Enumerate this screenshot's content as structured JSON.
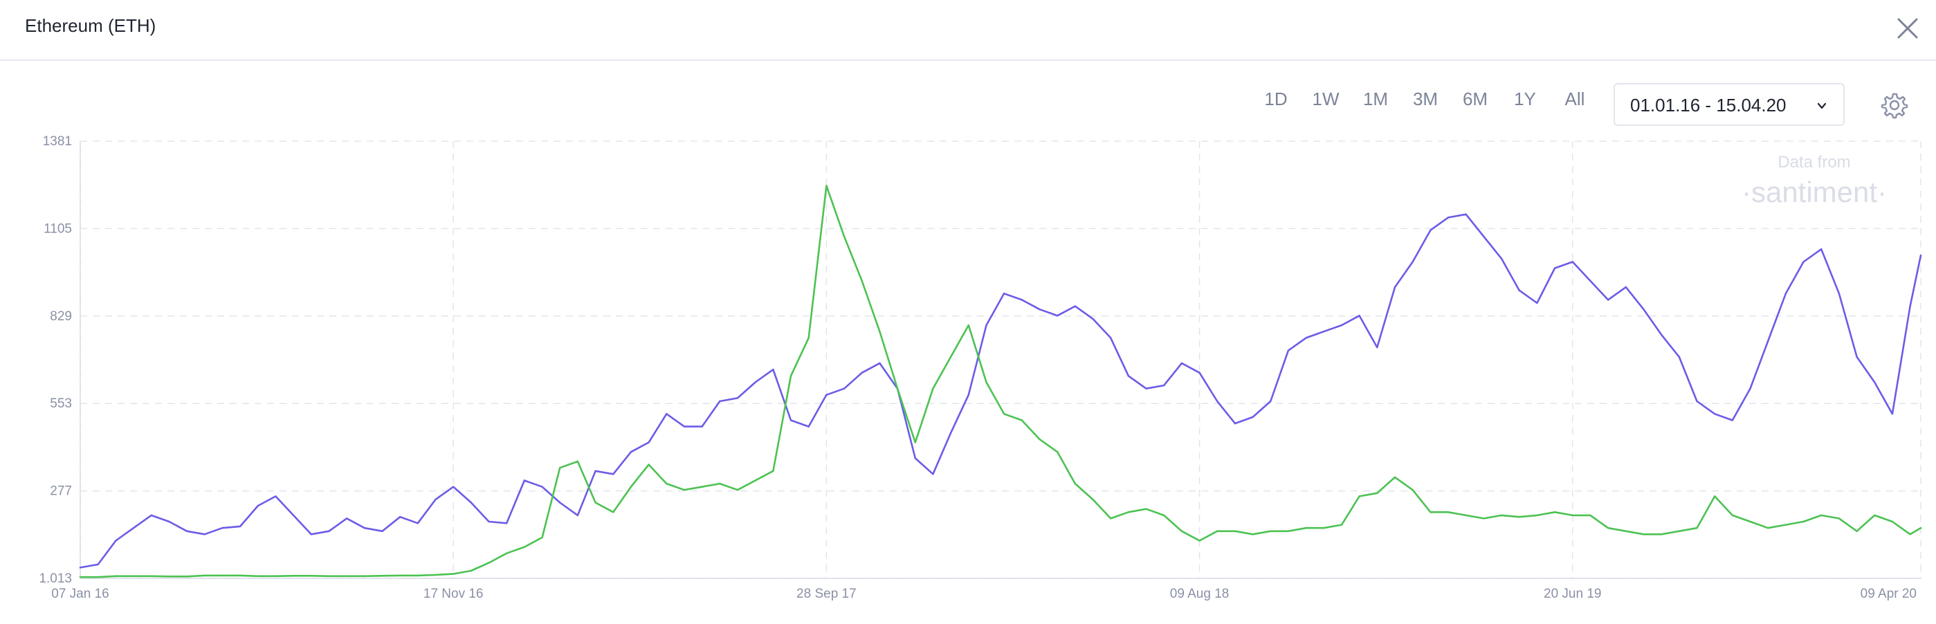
{
  "header": {
    "title": "Ethereum (ETH)",
    "close_icon": "close-icon"
  },
  "toolbar": {
    "ranges": [
      "1D",
      "1W",
      "1M",
      "3M",
      "6M",
      "1Y",
      "All"
    ],
    "date_range": "01.01.16 - 15.04.20",
    "chevron_icon": "chevron-down-icon",
    "settings_icon": "gear-icon"
  },
  "watermark": {
    "line1": "Data from",
    "line2": "·santiment·"
  },
  "chart_data": {
    "type": "line",
    "x_axis": {
      "type": "date",
      "ticks": [
        "07 Jan 16",
        "17 Nov 16",
        "28 Sep 17",
        "09 Aug 18",
        "20 Jun 19",
        "09 Apr 20"
      ]
    },
    "y_axis": {
      "ticks": [
        "1.013",
        "277",
        "553",
        "829",
        "1105",
        "1381"
      ],
      "ylim": [
        1.013,
        1381
      ]
    },
    "grid": true,
    "x": [
      "2016-01-07",
      "2016-01-22",
      "2016-02-06",
      "2016-02-21",
      "2016-03-07",
      "2016-03-22",
      "2016-04-06",
      "2016-04-21",
      "2016-05-06",
      "2016-05-21",
      "2016-06-05",
      "2016-06-20",
      "2016-07-05",
      "2016-07-20",
      "2016-08-04",
      "2016-08-19",
      "2016-09-03",
      "2016-09-18",
      "2016-10-03",
      "2016-10-18",
      "2016-11-02",
      "2016-11-17",
      "2016-12-02",
      "2016-12-17",
      "2017-01-01",
      "2017-01-16",
      "2017-01-31",
      "2017-02-15",
      "2017-03-02",
      "2017-03-17",
      "2017-04-01",
      "2017-04-16",
      "2017-05-01",
      "2017-05-16",
      "2017-05-31",
      "2017-06-15",
      "2017-06-30",
      "2017-07-15",
      "2017-07-30",
      "2017-08-14",
      "2017-08-29",
      "2017-09-13",
      "2017-09-28",
      "2017-10-13",
      "2017-10-28",
      "2017-11-12",
      "2017-11-27",
      "2017-12-12",
      "2017-12-27",
      "2018-01-11",
      "2018-01-26",
      "2018-02-10",
      "2018-02-25",
      "2018-03-12",
      "2018-03-27",
      "2018-04-11",
      "2018-04-26",
      "2018-05-11",
      "2018-05-26",
      "2018-06-10",
      "2018-06-25",
      "2018-07-10",
      "2018-07-25",
      "2018-08-09",
      "2018-08-24",
      "2018-09-08",
      "2018-09-23",
      "2018-10-08",
      "2018-10-23",
      "2018-11-07",
      "2018-11-22",
      "2018-12-07",
      "2018-12-22",
      "2019-01-06",
      "2019-01-21",
      "2019-02-05",
      "2019-02-20",
      "2019-03-07",
      "2019-03-22",
      "2019-04-06",
      "2019-04-21",
      "2019-05-06",
      "2019-05-21",
      "2019-06-05",
      "2019-06-20",
      "2019-07-05",
      "2019-07-20",
      "2019-08-04",
      "2019-08-19",
      "2019-09-03",
      "2019-09-18",
      "2019-10-03",
      "2019-10-18",
      "2019-11-02",
      "2019-11-17",
      "2019-12-02",
      "2019-12-17",
      "2020-01-01",
      "2020-01-16",
      "2020-01-31",
      "2020-02-15",
      "2020-03-01",
      "2020-03-16",
      "2020-03-31",
      "2020-04-09"
    ],
    "series": [
      {
        "color": "#6b5ce7",
        "values": [
          35,
          45,
          120,
          160,
          200,
          180,
          150,
          140,
          160,
          165,
          230,
          260,
          200,
          140,
          150,
          190,
          160,
          150,
          195,
          175,
          250,
          290,
          240,
          180,
          175,
          310,
          290,
          240,
          200,
          340,
          330,
          400,
          430,
          520,
          480,
          480,
          560,
          570,
          620,
          660,
          500,
          480,
          580,
          600,
          650,
          680,
          600,
          380,
          330,
          460,
          580,
          800,
          900,
          880,
          850,
          830,
          860,
          820,
          760,
          640,
          600,
          610,
          680,
          650,
          560,
          490,
          510,
          560,
          720,
          760,
          780,
          800,
          830,
          730,
          920,
          1000,
          1100,
          1140,
          1150,
          1080,
          1010,
          910,
          870,
          980,
          1000,
          940,
          880,
          920,
          850,
          770,
          700,
          560,
          520,
          500,
          600,
          750,
          900,
          1000,
          1040,
          900,
          700,
          620,
          520,
          860,
          1020
        ]
      },
      {
        "color": "#4cc252",
        "values": [
          5,
          5,
          8,
          8,
          8,
          7,
          7,
          10,
          10,
          10,
          8,
          8,
          9,
          9,
          8,
          8,
          8,
          9,
          10,
          10,
          12,
          15,
          25,
          50,
          80,
          100,
          130,
          350,
          370,
          240,
          210,
          290,
          360,
          300,
          280,
          290,
          300,
          280,
          310,
          340,
          640,
          760,
          1240,
          1080,
          940,
          780,
          600,
          430,
          600,
          700,
          800,
          620,
          520,
          500,
          440,
          400,
          300,
          250,
          190,
          210,
          220,
          200,
          150,
          120,
          150,
          150,
          140,
          150,
          150,
          160,
          160,
          170,
          260,
          270,
          320,
          280,
          210,
          210,
          200,
          190,
          200,
          195,
          200,
          210,
          200,
          200,
          160,
          150,
          140,
          140,
          150,
          160,
          260,
          200,
          180,
          160,
          170,
          180,
          200,
          190,
          150,
          200,
          180,
          140,
          160
        ]
      }
    ]
  }
}
